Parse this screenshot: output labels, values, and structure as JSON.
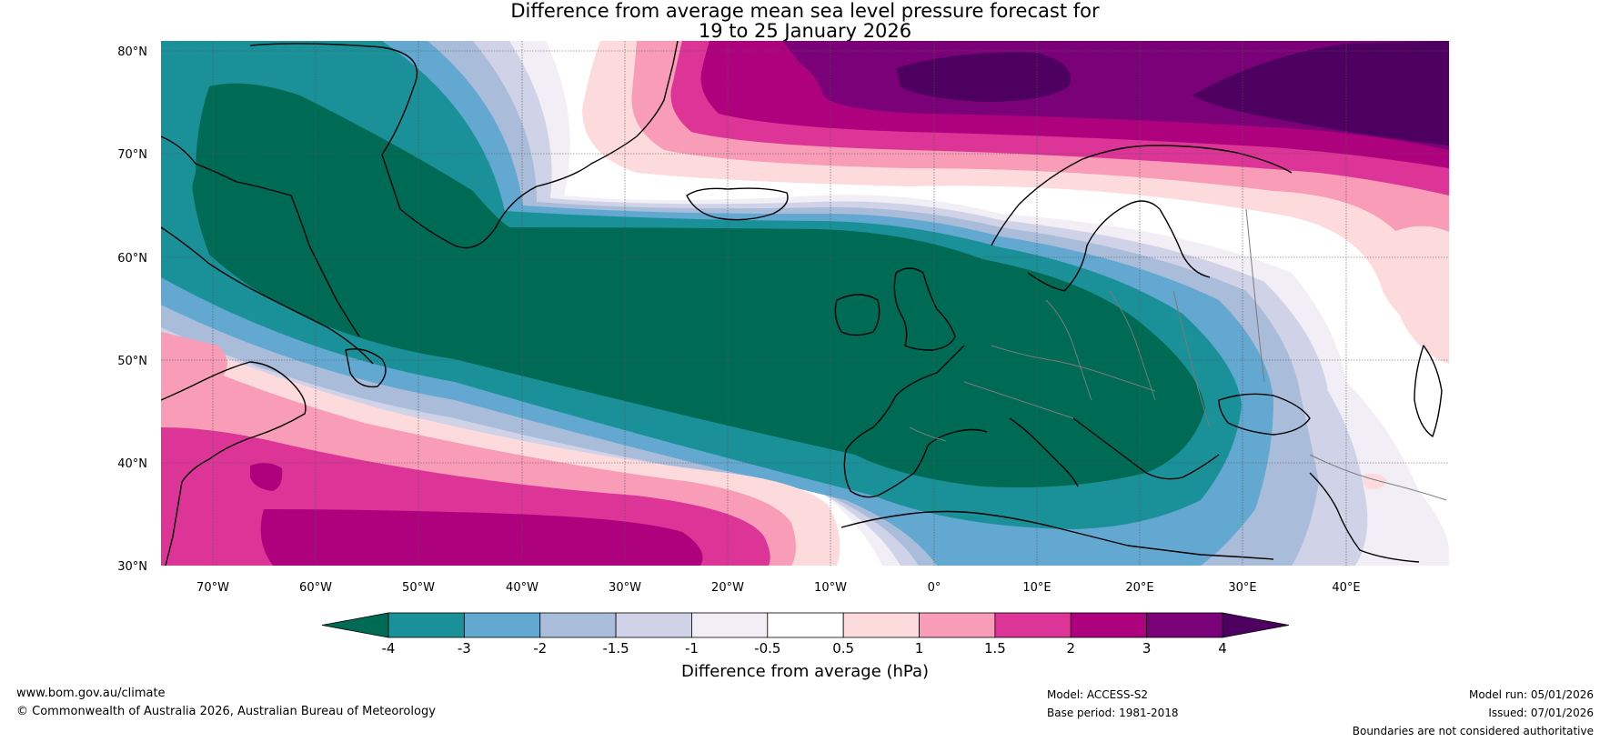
{
  "title": {
    "line1": "Difference from average mean sea level pressure forecast for",
    "line2": "19 to 25 January 2026"
  },
  "map": {
    "lat_range": [
      30,
      81
    ],
    "lon_range": [
      -75,
      50
    ],
    "lat_ticks": [
      "80°N",
      "70°N",
      "60°N",
      "50°N",
      "40°N",
      "30°N"
    ],
    "lon_ticks": [
      "70°W",
      "60°W",
      "50°W",
      "40°W",
      "30°W",
      "20°W",
      "10°W",
      "0°",
      "10°E",
      "20°E",
      "30°E",
      "40°E"
    ]
  },
  "colorbar": {
    "label": "Difference from average (hPa)",
    "ticks": [
      "-4",
      "-3",
      "-2",
      "-1.5",
      "-1",
      "-0.5",
      "0.5",
      "1",
      "1.5",
      "2",
      "3",
      "4"
    ],
    "colors": [
      "#006b55",
      "#1a9098",
      "#62a8d0",
      "#a9bcd9",
      "#d0d2e7",
      "#f1eef5",
      "#ffffff",
      "#fddbdc",
      "#f89cb8",
      "#dd3597",
      "#ad017e",
      "#7a0177",
      "#4d0060"
    ]
  },
  "footer": {
    "website": "www.bom.gov.au/climate",
    "copyright": "© Commonwealth of Australia 2026, Australian Bureau of Meteorology",
    "model": "Model: ACCESS-S2",
    "base_period": "Base period: 1981-2018",
    "model_run": "Model run: 05/01/2026",
    "issued": "Issued: 07/01/2026",
    "boundaries": "Boundaries are not considered authoritative"
  }
}
